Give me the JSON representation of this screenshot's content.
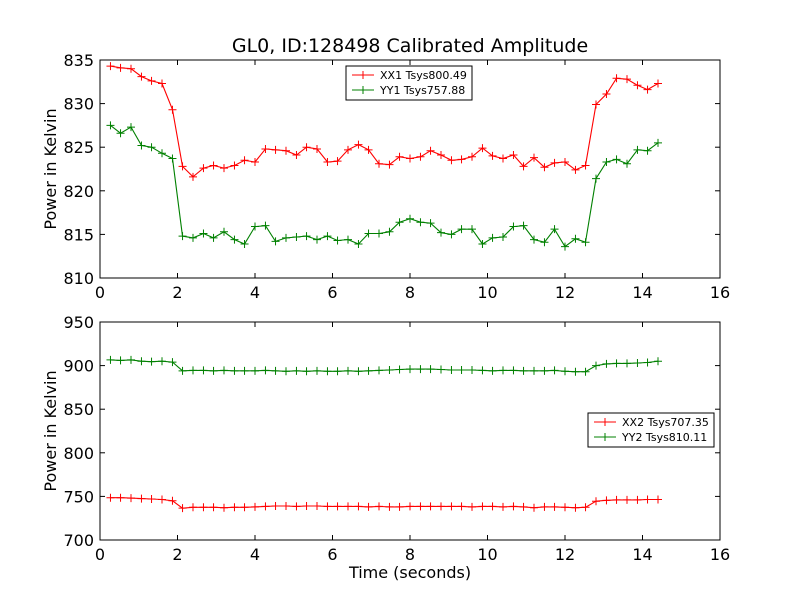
{
  "figure": {
    "title": "GL0, ID:128498 Calibrated Amplitude",
    "xlabel": "Time (seconds)"
  },
  "chart_data": [
    {
      "type": "line",
      "ylabel": "Power in Kelvin",
      "xlim": [
        0,
        16
      ],
      "ylim": [
        810,
        835
      ],
      "xticks": [
        "0",
        "2",
        "4",
        "6",
        "8",
        "10",
        "12",
        "14",
        "16"
      ],
      "yticks": [
        "810",
        "815",
        "820",
        "825",
        "830",
        "835"
      ],
      "legend_position": "upper-center",
      "x": [
        0.27,
        0.53,
        0.8,
        1.07,
        1.33,
        1.6,
        1.87,
        2.13,
        2.4,
        2.67,
        2.93,
        3.2,
        3.47,
        3.73,
        4.0,
        4.27,
        4.53,
        4.8,
        5.07,
        5.33,
        5.6,
        5.87,
        6.13,
        6.4,
        6.67,
        6.93,
        7.2,
        7.47,
        7.73,
        8.0,
        8.27,
        8.53,
        8.8,
        9.07,
        9.33,
        9.6,
        9.87,
        10.13,
        10.4,
        10.67,
        10.93,
        11.2,
        11.47,
        11.73,
        12.0,
        12.27,
        12.53,
        12.8,
        13.07,
        13.33,
        13.6,
        13.87,
        14.13,
        14.4
      ],
      "series": [
        {
          "name": "XX1 Tsys800.49",
          "color": "#ff0000",
          "values": [
            834.3,
            834.1,
            834.0,
            833.1,
            832.6,
            832.3,
            829.3,
            822.8,
            821.6,
            822.6,
            822.9,
            822.6,
            822.9,
            823.5,
            823.3,
            824.8,
            824.7,
            824.6,
            824.1,
            825.0,
            824.8,
            823.3,
            823.4,
            824.7,
            825.3,
            824.7,
            823.1,
            823.0,
            823.9,
            823.7,
            823.9,
            824.6,
            824.1,
            823.5,
            823.6,
            823.9,
            824.9,
            824.0,
            823.7,
            824.1,
            822.8,
            823.8,
            822.7,
            823.2,
            823.3,
            822.4,
            822.9,
            829.9,
            831.1,
            832.9,
            832.8,
            832.1,
            831.6,
            832.3
          ]
        },
        {
          "name": "YY1 Tsys757.88",
          "color": "#008000",
          "values": [
            827.5,
            826.6,
            827.3,
            825.2,
            825.0,
            824.3,
            823.7,
            814.8,
            814.6,
            815.1,
            814.6,
            815.3,
            814.4,
            813.9,
            815.9,
            816.0,
            814.2,
            814.6,
            814.7,
            814.8,
            814.4,
            814.8,
            814.3,
            814.4,
            813.9,
            815.1,
            815.1,
            815.3,
            816.4,
            816.8,
            816.4,
            816.3,
            815.2,
            815.0,
            815.6,
            815.6,
            813.9,
            814.6,
            814.7,
            815.9,
            816.0,
            814.4,
            814.1,
            815.6,
            813.6,
            814.5,
            814.1,
            821.4,
            823.3,
            823.6,
            823.1,
            824.7,
            824.6,
            825.5
          ]
        }
      ]
    },
    {
      "type": "line",
      "ylabel": "Power in Kelvin",
      "xlim": [
        0,
        16
      ],
      "ylim": [
        700,
        950
      ],
      "xticks": [
        "0",
        "2",
        "4",
        "6",
        "8",
        "10",
        "12",
        "14",
        "16"
      ],
      "yticks": [
        "700",
        "750",
        "800",
        "850",
        "900",
        "950"
      ],
      "legend_position": "center-right",
      "x": [
        0.27,
        0.53,
        0.8,
        1.07,
        1.33,
        1.6,
        1.87,
        2.13,
        2.4,
        2.67,
        2.93,
        3.2,
        3.47,
        3.73,
        4.0,
        4.27,
        4.53,
        4.8,
        5.07,
        5.33,
        5.6,
        5.87,
        6.13,
        6.4,
        6.67,
        6.93,
        7.2,
        7.47,
        7.73,
        8.0,
        8.27,
        8.53,
        8.8,
        9.07,
        9.33,
        9.6,
        9.87,
        10.13,
        10.4,
        10.67,
        10.93,
        11.2,
        11.47,
        11.73,
        12.0,
        12.27,
        12.53,
        12.8,
        13.07,
        13.33,
        13.6,
        13.87,
        14.13,
        14.4
      ],
      "series": [
        {
          "name": "XX2 Tsys707.35",
          "color": "#ff0000",
          "values": [
            748.5,
            748.5,
            748.0,
            747.5,
            747.0,
            746.5,
            745.0,
            736.5,
            737.5,
            737.5,
            737.5,
            737.0,
            737.5,
            737.5,
            738.0,
            738.5,
            739.0,
            739.0,
            738.5,
            739.0,
            739.0,
            738.5,
            738.5,
            738.5,
            738.5,
            738.0,
            738.5,
            738.0,
            738.0,
            738.5,
            738.5,
            738.5,
            738.5,
            738.5,
            738.5,
            738.0,
            738.5,
            738.5,
            738.0,
            738.5,
            738.0,
            737.0,
            738.0,
            738.0,
            737.5,
            737.0,
            737.5,
            744.5,
            745.5,
            746.0,
            746.0,
            746.0,
            746.5,
            746.5
          ]
        },
        {
          "name": "YY2 Tsys810.11",
          "color": "#008000",
          "values": [
            906.5,
            906.0,
            906.5,
            905.0,
            904.5,
            905.0,
            904.0,
            894.0,
            894.5,
            894.5,
            894.0,
            894.5,
            894.0,
            894.0,
            894.0,
            894.5,
            894.0,
            893.5,
            894.0,
            893.5,
            894.0,
            893.5,
            893.5,
            894.0,
            893.5,
            894.0,
            894.5,
            895.0,
            895.5,
            896.0,
            896.0,
            896.0,
            895.5,
            895.0,
            895.0,
            895.0,
            894.5,
            894.0,
            894.5,
            894.5,
            894.0,
            894.0,
            894.0,
            894.5,
            893.5,
            893.0,
            893.0,
            900.0,
            902.0,
            902.5,
            902.5,
            903.0,
            903.5,
            905.0
          ]
        }
      ]
    }
  ]
}
